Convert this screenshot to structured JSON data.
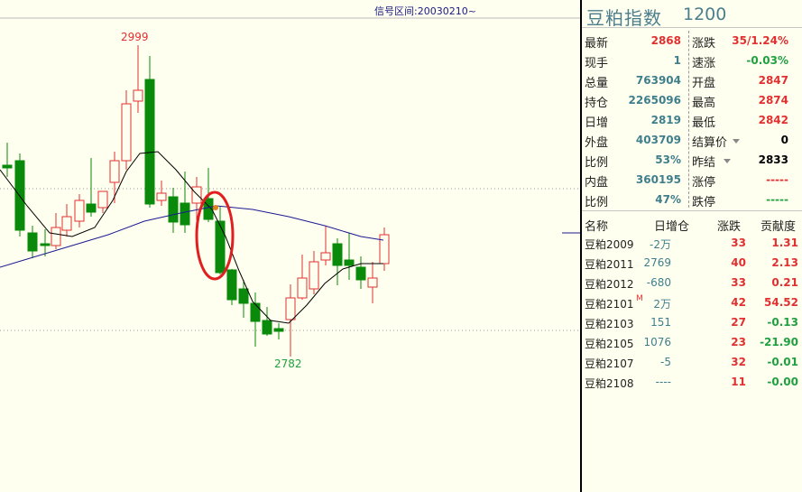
{
  "chart": {
    "signal_range": "信号区间:20030210~",
    "annotations": {
      "high": "2999",
      "low": "2782"
    },
    "colors": {
      "up": "#e03030",
      "down": "#0a8a0a",
      "ma_short": "#000000",
      "ma_long": "#1a1a90",
      "highlight": "#e02020",
      "grid": "#999999"
    }
  },
  "quote": {
    "name": "豆粕指数",
    "code": "1200",
    "left": [
      {
        "label": "最新",
        "value": "2868",
        "color": "red"
      },
      {
        "label": "现手",
        "value": "1",
        "color": "blue"
      },
      {
        "label": "总量",
        "value": "763904",
        "color": "blue"
      },
      {
        "label": "持仓",
        "value": "2265096",
        "color": "blue"
      },
      {
        "label": "日增",
        "value": "2819",
        "color": "blue"
      },
      {
        "label": "外盘",
        "value": "403709",
        "color": "blue"
      },
      {
        "label": "比例",
        "value": "53%",
        "color": "blue"
      },
      {
        "label": "内盘",
        "value": "360195",
        "color": "blue"
      },
      {
        "label": "比例",
        "value": "47%",
        "color": "blue"
      }
    ],
    "right": [
      {
        "label": "涨跌",
        "value": "35/1.24%",
        "color": "red"
      },
      {
        "label": "速涨",
        "value": "-0.03%",
        "color": "green"
      },
      {
        "label": "开盘",
        "value": "2847",
        "color": "red"
      },
      {
        "label": "最高",
        "value": "2874",
        "color": "red"
      },
      {
        "label": "最低",
        "value": "2842",
        "color": "red"
      },
      {
        "label": "结算价",
        "value": "0",
        "color": "black"
      },
      {
        "label": "昨结",
        "value": "2833",
        "color": "black"
      },
      {
        "label": "涨停",
        "value": "-----",
        "color": "red"
      },
      {
        "label": "跌停",
        "value": "-----",
        "color": "green"
      }
    ]
  },
  "contracts": {
    "headers": [
      "名称",
      "日增仓",
      "涨跌",
      "贡献度"
    ],
    "rows": [
      {
        "name": "豆粕2009",
        "mark": "",
        "oi": "-2万",
        "oi_color": "blue",
        "chg": "33",
        "contrib": "1.31",
        "contrib_color": "red"
      },
      {
        "name": "豆粕2011",
        "mark": "",
        "oi": "2769",
        "oi_color": "blue",
        "chg": "40",
        "contrib": "2.13",
        "contrib_color": "red"
      },
      {
        "name": "豆粕2012",
        "mark": "",
        "oi": "-680",
        "oi_color": "blue",
        "chg": "33",
        "contrib": "0.21",
        "contrib_color": "red"
      },
      {
        "name": "豆粕2101",
        "mark": "M",
        "oi": "2万",
        "oi_color": "blue",
        "chg": "42",
        "contrib": "54.52",
        "contrib_color": "red"
      },
      {
        "name": "豆粕2103",
        "mark": "",
        "oi": "151",
        "oi_color": "blue",
        "chg": "27",
        "contrib": "-0.13",
        "contrib_color": "green"
      },
      {
        "name": "豆粕2105",
        "mark": "",
        "oi": "1076",
        "oi_color": "blue",
        "chg": "23",
        "contrib": "-21.90",
        "contrib_color": "green"
      },
      {
        "name": "豆粕2107",
        "mark": "",
        "oi": "-5",
        "oi_color": "blue",
        "chg": "32",
        "contrib": "-0.01",
        "contrib_color": "green"
      },
      {
        "name": "豆粕2108",
        "mark": "",
        "oi": "----",
        "oi_color": "blue",
        "chg": "11",
        "contrib": "-0.00",
        "contrib_color": "green"
      }
    ]
  }
}
